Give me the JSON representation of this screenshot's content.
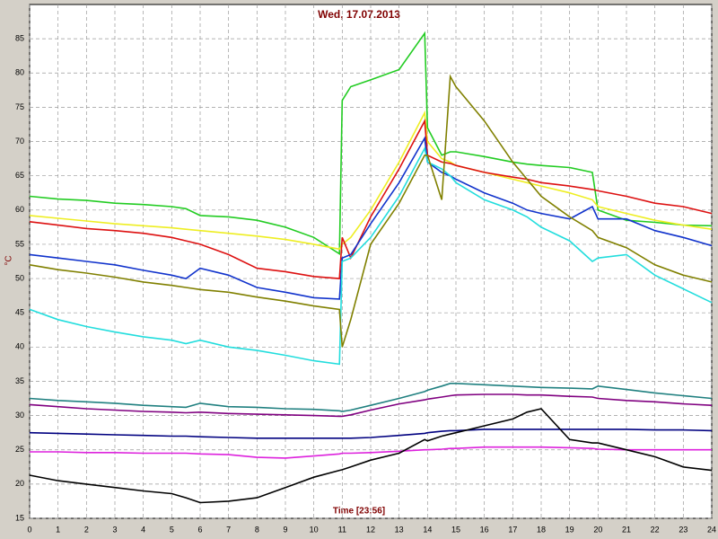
{
  "chart_data": {
    "type": "line",
    "title": "Wed, 17.07.2013",
    "y_label": "°C",
    "x_label": "Time [23:56]",
    "x": [
      0,
      1,
      2,
      3,
      4,
      5,
      5.5,
      6,
      7,
      8,
      9,
      10,
      10.9,
      11,
      11.3,
      12,
      13,
      13.9,
      14,
      14.5,
      14.8,
      15,
      16,
      17,
      17.5,
      18,
      19,
      19.8,
      20,
      21,
      22,
      23,
      24
    ],
    "xlim": [
      0,
      24
    ],
    "xticks": [
      0,
      1,
      2,
      3,
      4,
      5,
      6,
      7,
      8,
      9,
      10,
      11,
      12,
      13,
      14,
      15,
      16,
      17,
      18,
      19,
      20,
      21,
      22,
      23,
      24
    ],
    "ylim": [
      15,
      90
    ],
    "yticks": [
      15,
      20,
      25,
      30,
      35,
      40,
      45,
      50,
      55,
      60,
      65,
      70,
      75,
      80,
      85
    ],
    "grid": true,
    "series": [
      {
        "color": "#22cc22",
        "values": [
          62,
          61.6,
          61.4,
          61,
          60.8,
          60.5,
          60.2,
          59.2,
          59,
          58.5,
          57.5,
          56,
          53.6,
          76,
          78,
          79,
          80.5,
          85.8,
          72,
          68,
          68.5,
          68.5,
          67.8,
          67,
          66.7,
          66.5,
          66.2,
          65.5,
          60,
          58.5,
          58.2,
          57.8,
          57.7
        ]
      },
      {
        "color": "#eeee22",
        "values": [
          59.2,
          58.8,
          58.4,
          58,
          57.7,
          57.4,
          57.2,
          57,
          56.6,
          56.2,
          55.7,
          55,
          54.3,
          55,
          56,
          60,
          67,
          74.2,
          70,
          67.5,
          67,
          66.5,
          65.5,
          64.5,
          64,
          63.5,
          62.5,
          61.5,
          60.5,
          59.5,
          58.5,
          57.8,
          57.2
        ]
      },
      {
        "color": "#dd1111",
        "values": [
          58.3,
          57.8,
          57.3,
          57,
          56.6,
          56,
          55.5,
          55,
          53.5,
          51.5,
          51,
          50.3,
          50,
          56,
          53,
          59,
          66,
          73,
          68,
          67,
          66.8,
          66.5,
          65.5,
          64.8,
          64.5,
          64,
          63.5,
          63,
          62.8,
          62,
          61,
          60.5,
          59.5
        ]
      },
      {
        "color": "#1133cc",
        "values": [
          53.5,
          53,
          52.5,
          52,
          51.2,
          50.5,
          50,
          51.5,
          50.5,
          48.7,
          48,
          47.2,
          47,
          53,
          53.5,
          58,
          64,
          70.5,
          67,
          65.5,
          65,
          64.5,
          62.5,
          61,
          60,
          59.5,
          58.7,
          60.5,
          58.7,
          58.7,
          57,
          56,
          54.8
        ]
      },
      {
        "color": "#22dddd",
        "values": [
          45.5,
          44,
          43,
          42.2,
          41.5,
          41,
          40.5,
          41,
          40,
          39.5,
          38.8,
          38,
          37.5,
          52.5,
          53,
          56,
          62,
          69,
          67,
          66,
          65,
          64,
          61.5,
          60,
          59,
          57.5,
          55.5,
          52.5,
          53,
          53.5,
          50.5,
          48.5,
          46.5
        ]
      },
      {
        "color": "#808000",
        "values": [
          52,
          51.3,
          50.8,
          50.2,
          49.5,
          49,
          48.7,
          48.4,
          48,
          47.3,
          46.7,
          46,
          45.5,
          40,
          44,
          55,
          61,
          68,
          68,
          61.5,
          79.5,
          78,
          73,
          67,
          64.5,
          62,
          59,
          57,
          56,
          54.5,
          52,
          50.5,
          49.5
        ]
      },
      {
        "color": "#208080",
        "values": [
          32.5,
          32.2,
          32,
          31.8,
          31.5,
          31.3,
          31.2,
          31.8,
          31.3,
          31.2,
          31,
          30.9,
          30.7,
          30.6,
          30.8,
          31.5,
          32.5,
          33.5,
          33.7,
          34.3,
          34.7,
          34.7,
          34.5,
          34.3,
          34.2,
          34.1,
          34,
          33.9,
          34.3,
          33.8,
          33.3,
          32.9,
          32.5
        ]
      },
      {
        "color": "#800080",
        "values": [
          31.6,
          31.3,
          31,
          30.8,
          30.6,
          30.5,
          30.4,
          30.5,
          30.3,
          30.2,
          30.1,
          30,
          29.9,
          29.9,
          30.1,
          30.8,
          31.7,
          32.3,
          32.4,
          32.7,
          32.9,
          33,
          33.1,
          33.1,
          33,
          33,
          32.8,
          32.7,
          32.5,
          32.2,
          32,
          31.7,
          31.5
        ]
      },
      {
        "color": "#000080",
        "values": [
          27.5,
          27.4,
          27.3,
          27.2,
          27.1,
          27,
          27,
          26.9,
          26.8,
          26.7,
          26.7,
          26.7,
          26.7,
          26.7,
          26.7,
          26.8,
          27.1,
          27.4,
          27.5,
          27.7,
          27.8,
          27.8,
          28,
          28,
          28,
          28,
          28,
          28,
          28,
          28,
          27.9,
          27.9,
          27.8
        ]
      },
      {
        "color": "#dd22dd",
        "values": [
          24.7,
          24.7,
          24.6,
          24.6,
          24.5,
          24.5,
          24.5,
          24.4,
          24.3,
          23.9,
          23.8,
          24.1,
          24.4,
          24.5,
          24.5,
          24.6,
          24.8,
          25,
          25,
          25.1,
          25.2,
          25.2,
          25.4,
          25.4,
          25.4,
          25.4,
          25.3,
          25.2,
          25.1,
          25,
          25,
          25,
          25
        ]
      },
      {
        "color": "#000000",
        "values": [
          21.3,
          20.5,
          20,
          19.5,
          19,
          18.6,
          18,
          17.3,
          17.5,
          18,
          19.5,
          21,
          22,
          22.1,
          22.5,
          23.5,
          24.5,
          26.5,
          26.3,
          27,
          27.3,
          27.5,
          28.5,
          29.5,
          30.5,
          31,
          26.5,
          26,
          26,
          25,
          24,
          22.5,
          22
        ]
      }
    ]
  }
}
